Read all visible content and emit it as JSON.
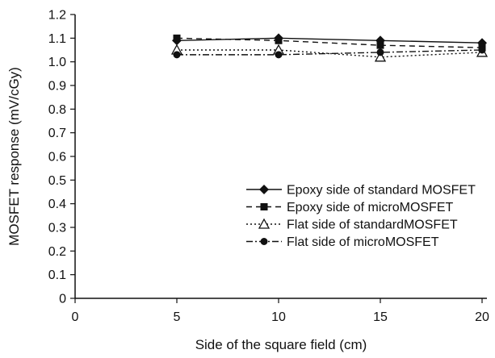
{
  "chart_data": {
    "type": "line",
    "title": "",
    "xlabel": "Side of the square field (cm)",
    "ylabel": "MOSFET response (mV/cGy)",
    "xlim": [
      0,
      20
    ],
    "ylim": [
      0,
      1.2
    ],
    "x_ticks": [
      "0",
      "5",
      "10",
      "15",
      "20"
    ],
    "y_ticks": [
      "0",
      "0.1",
      "0.2",
      "0.3",
      "0.4",
      "0.5",
      "0.6",
      "0.7",
      "0.8",
      "0.9",
      "1.0",
      "1.1",
      "1.2"
    ],
    "x": [
      5,
      10,
      15,
      20
    ],
    "grid": false,
    "legend_position": "lower-right",
    "series": [
      {
        "name": "Epoxy side of standard MOSFET",
        "values": [
          1.09,
          1.1,
          1.09,
          1.08
        ],
        "marker": "diamond-filled",
        "line_style": "solid",
        "color": "#111111"
      },
      {
        "name": "Epoxy side of microMOSFET",
        "values": [
          1.1,
          1.09,
          1.07,
          1.06
        ],
        "marker": "square-filled",
        "line_style": "dashed",
        "color": "#111111"
      },
      {
        "name": "Flat side of standardMOSFET",
        "values": [
          1.05,
          1.05,
          1.02,
          1.04
        ],
        "marker": "triangle-open",
        "line_style": "dotted",
        "color": "#111111"
      },
      {
        "name": "Flat side of microMOSFET",
        "values": [
          1.03,
          1.03,
          1.04,
          1.05
        ],
        "marker": "circle-filled",
        "line_style": "dash-dot",
        "color": "#111111"
      }
    ]
  }
}
